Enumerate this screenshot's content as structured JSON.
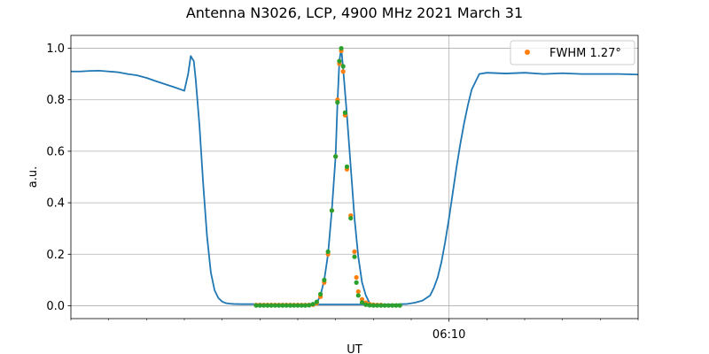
{
  "chart_data": {
    "type": "line",
    "title": "Antenna N3026, LCP, 4900 MHz 2021 March 31",
    "xlabel": "UT",
    "ylabel": "a.u.",
    "x_unit": "minutes",
    "xlim": [
      0,
      15
    ],
    "ylim": [
      -0.05,
      1.05
    ],
    "x_ticks": [
      {
        "x": 10,
        "label": "06:10"
      }
    ],
    "y_ticks": [
      0.0,
      0.2,
      0.4,
      0.6,
      0.8,
      1.0
    ],
    "y_tick_labels": [
      "0.0",
      "0.2",
      "0.4",
      "0.6",
      "0.8",
      "1.0"
    ],
    "grid": true,
    "legend": {
      "position": "upper-right",
      "entries": [
        {
          "label": "FWHM 1.27$^\\circ$",
          "display": "FWHM 1.27°",
          "color": "#ff7f0e"
        }
      ]
    },
    "series": [
      {
        "style": "line",
        "color": "#1f77b4",
        "x": [
          0.0,
          0.25,
          0.5,
          0.75,
          1.0,
          1.25,
          1.5,
          1.75,
          2.0,
          2.25,
          2.5,
          2.75,
          3.0,
          3.1,
          3.17,
          3.25,
          3.3,
          3.4,
          3.5,
          3.6,
          3.7,
          3.8,
          3.9,
          4.0,
          4.1,
          4.2,
          4.3,
          4.5,
          4.7,
          5.0,
          5.5,
          6.0,
          6.5,
          7.0,
          7.5,
          8.0,
          8.5,
          8.9,
          9.1,
          9.3,
          9.5,
          9.6,
          9.7,
          9.8,
          9.9,
          10.0,
          10.1,
          10.2,
          10.3,
          10.4,
          10.5,
          10.6,
          10.8,
          11.0,
          11.5,
          12.0,
          12.5,
          13.0,
          13.5,
          14.0,
          14.5,
          15.0
        ],
        "y": [
          0.91,
          0.91,
          0.912,
          0.913,
          0.91,
          0.907,
          0.9,
          0.895,
          0.885,
          0.872,
          0.86,
          0.848,
          0.835,
          0.9,
          0.97,
          0.95,
          0.88,
          0.7,
          0.47,
          0.27,
          0.13,
          0.06,
          0.03,
          0.016,
          0.01,
          0.008,
          0.007,
          0.006,
          0.006,
          0.006,
          0.005,
          0.005,
          0.005,
          0.005,
          0.005,
          0.005,
          0.005,
          0.007,
          0.012,
          0.02,
          0.04,
          0.07,
          0.11,
          0.17,
          0.25,
          0.34,
          0.44,
          0.54,
          0.63,
          0.71,
          0.78,
          0.84,
          0.9,
          0.905,
          0.902,
          0.905,
          0.9,
          0.903,
          0.9,
          0.9,
          0.9,
          0.898
        ]
      },
      {
        "style": "line",
        "color": "#1f77b4",
        "x": [
          4.9,
          6.3,
          6.5,
          6.6,
          6.7,
          6.8,
          6.9,
          7.0,
          7.05,
          7.1,
          7.15,
          7.2,
          7.3,
          7.4,
          7.5,
          7.6,
          7.7,
          7.8,
          7.9,
          8.0,
          8.5,
          8.7
        ],
        "y": [
          0.001,
          0.001,
          0.01,
          0.04,
          0.1,
          0.2,
          0.37,
          0.58,
          0.79,
          0.95,
          1.0,
          0.92,
          0.74,
          0.54,
          0.34,
          0.19,
          0.09,
          0.04,
          0.01,
          0.002,
          0.001,
          0.001
        ]
      },
      {
        "style": "markers",
        "color": "#ff7f0e",
        "x": [
          4.9,
          5.0,
          5.1,
          5.2,
          5.3,
          5.4,
          5.5,
          5.6,
          5.7,
          5.8,
          5.9,
          6.0,
          6.1,
          6.2,
          6.3,
          6.4,
          6.5,
          6.6,
          6.7,
          6.8,
          6.9,
          7.0,
          7.05,
          7.1,
          7.15,
          7.2,
          7.25,
          7.3,
          7.4,
          7.5,
          7.55,
          7.6,
          7.7,
          7.8,
          7.9,
          8.0,
          8.1,
          8.2
        ],
        "y": [
          0.003,
          0.003,
          0.003,
          0.003,
          0.003,
          0.003,
          0.003,
          0.003,
          0.003,
          0.003,
          0.003,
          0.003,
          0.003,
          0.003,
          0.003,
          0.004,
          0.01,
          0.035,
          0.09,
          0.2,
          0.37,
          0.58,
          0.8,
          0.94,
          0.99,
          0.91,
          0.74,
          0.53,
          0.35,
          0.21,
          0.11,
          0.055,
          0.025,
          0.012,
          0.006,
          0.004,
          0.003,
          0.003
        ]
      },
      {
        "style": "markers",
        "color": "#2ca02c",
        "x": [
          4.9,
          5.0,
          5.1,
          5.2,
          5.3,
          5.4,
          5.5,
          5.6,
          5.7,
          5.8,
          5.9,
          6.0,
          6.1,
          6.2,
          6.3,
          6.4,
          6.5,
          6.6,
          6.7,
          6.8,
          6.9,
          7.0,
          7.05,
          7.1,
          7.15,
          7.2,
          7.25,
          7.3,
          7.4,
          7.5,
          7.55,
          7.6,
          7.7,
          7.8,
          7.9,
          8.0,
          8.1,
          8.2,
          8.3,
          8.4,
          8.5,
          8.6,
          8.7
        ],
        "y": [
          0.001,
          0.001,
          0.001,
          0.001,
          0.001,
          0.001,
          0.001,
          0.001,
          0.001,
          0.001,
          0.001,
          0.001,
          0.001,
          0.001,
          0.002,
          0.006,
          0.015,
          0.045,
          0.1,
          0.21,
          0.37,
          0.58,
          0.79,
          0.95,
          1.0,
          0.93,
          0.75,
          0.54,
          0.34,
          0.19,
          0.09,
          0.04,
          0.013,
          0.004,
          0.002,
          0.001,
          0.001,
          0.001,
          0.001,
          0.001,
          0.001,
          0.001,
          0.001
        ]
      }
    ]
  }
}
